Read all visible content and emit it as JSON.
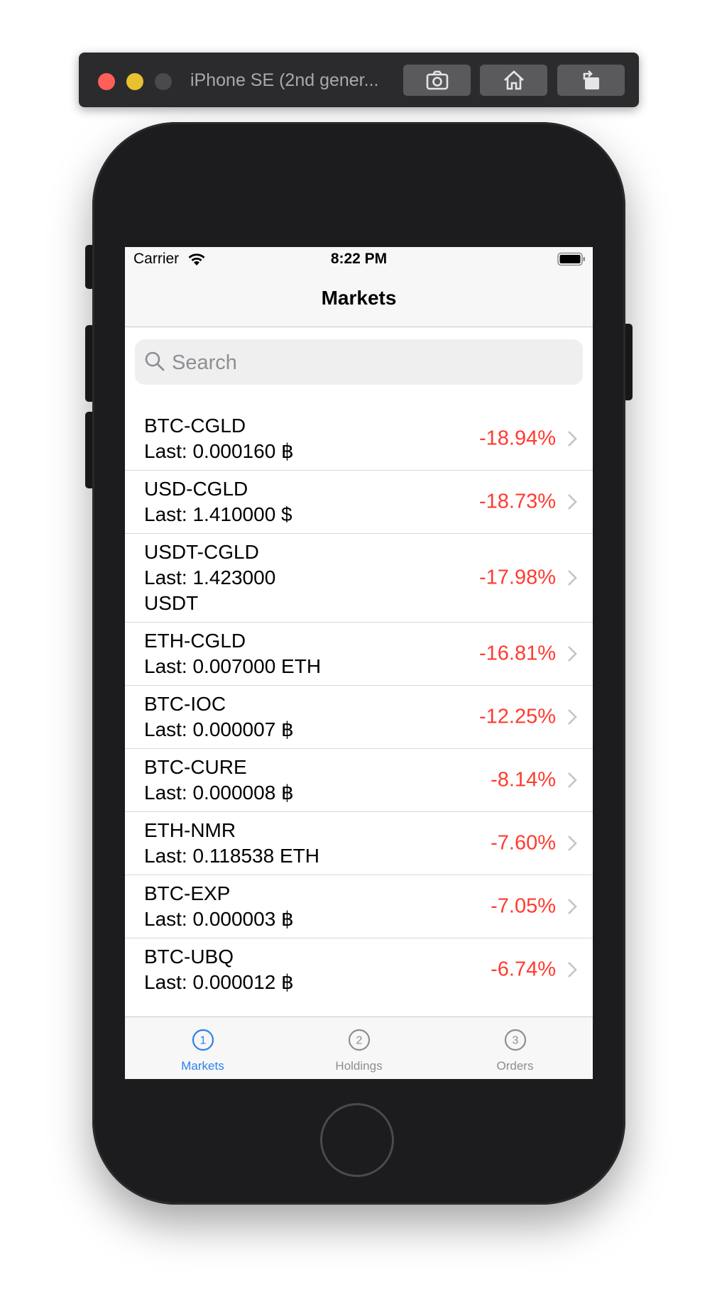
{
  "simulator": {
    "title": "iPhone SE (2nd gener..."
  },
  "status_bar": {
    "carrier": "Carrier",
    "time": "8:22 PM"
  },
  "nav": {
    "title": "Markets"
  },
  "search": {
    "placeholder": "Search"
  },
  "markets": [
    {
      "pair": "BTC-CGLD",
      "last": "Last: 0.000160 ฿",
      "change": "-18.94%"
    },
    {
      "pair": "USD-CGLD",
      "last": "Last: 1.410000 $",
      "change": "-18.73%"
    },
    {
      "pair": "USDT-CGLD",
      "last": "Last: 1.423000 USDT",
      "change": "-17.98%"
    },
    {
      "pair": "ETH-CGLD",
      "last": "Last: 0.007000 ETH",
      "change": "-16.81%"
    },
    {
      "pair": "BTC-IOC",
      "last": "Last: 0.000007 ฿",
      "change": "-12.25%"
    },
    {
      "pair": "BTC-CURE",
      "last": "Last: 0.000008 ฿",
      "change": "-8.14%"
    },
    {
      "pair": "ETH-NMR",
      "last": "Last: 0.118538 ETH",
      "change": "-7.60%"
    },
    {
      "pair": "BTC-EXP",
      "last": "Last: 0.000003 ฿",
      "change": "-7.05%"
    },
    {
      "pair": "BTC-UBQ",
      "last": "Last: 0.000012 ฿",
      "change": "-6.74%"
    }
  ],
  "tabs": [
    {
      "label": "Markets",
      "number": "1",
      "active": true
    },
    {
      "label": "Holdings",
      "number": "2",
      "active": false
    },
    {
      "label": "Orders",
      "number": "3",
      "active": false
    }
  ],
  "colors": {
    "negative": "#ff3b30",
    "tab_active": "#2f80ed",
    "tab_inactive": "#8e8e93"
  }
}
